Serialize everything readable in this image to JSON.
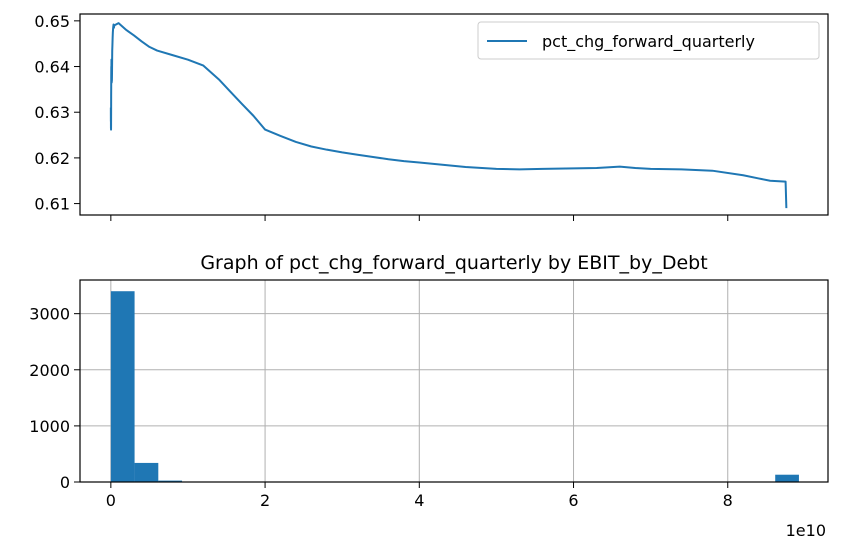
{
  "chart_data": [
    {
      "type": "line",
      "title": "",
      "legend": {
        "placement": "top-right",
        "entries": [
          "pct_chg_forward_quarterly"
        ]
      },
      "series": [
        {
          "name": "pct_chg_forward_quarterly",
          "color": "#1f77b4",
          "x": [
            0.0,
            0.0005,
            0.001,
            0.0015,
            0.002,
            0.0025,
            0.003,
            0.0035,
            0.004,
            0.0045,
            0.005,
            0.006,
            0.007,
            0.008,
            0.009,
            0.01,
            0.011,
            0.012,
            0.013,
            0.014,
            0.015,
            0.018,
            0.02,
            0.023,
            0.026,
            0.03,
            0.035,
            0.04,
            0.045,
            0.1,
            0.2,
            0.3,
            0.4,
            0.5,
            0.6,
            0.8,
            1.0,
            1.2,
            1.4,
            1.55,
            1.7,
            1.85,
            2.0,
            2.2,
            2.4,
            2.6,
            2.8,
            3.0,
            3.2,
            3.4,
            3.6,
            3.8,
            4.0,
            4.3,
            4.6,
            5.0,
            5.3,
            5.6,
            6.0,
            6.3,
            6.6,
            6.8,
            7.0,
            7.4,
            7.8,
            8.2,
            8.4,
            8.55,
            8.75,
            8.76
          ],
          "y": [
            0.631,
            0.628,
            0.6305,
            0.6265,
            0.629,
            0.6262,
            0.6275,
            0.63,
            0.6335,
            0.635,
            0.6375,
            0.64,
            0.6385,
            0.6415,
            0.637,
            0.6395,
            0.6365,
            0.6372,
            0.6368,
            0.6372,
            0.6385,
            0.6435,
            0.6445,
            0.6462,
            0.6475,
            0.6485,
            0.6492,
            0.6485,
            0.649,
            0.6495,
            0.648,
            0.6468,
            0.6455,
            0.6443,
            0.6435,
            0.6425,
            0.6415,
            0.6402,
            0.6372,
            0.6345,
            0.6318,
            0.6292,
            0.6262,
            0.6248,
            0.6235,
            0.6225,
            0.6218,
            0.6212,
            0.6207,
            0.6202,
            0.6197,
            0.6193,
            0.619,
            0.6185,
            0.618,
            0.6176,
            0.6175,
            0.6176,
            0.6177,
            0.6178,
            0.6181,
            0.6178,
            0.6176,
            0.6175,
            0.6172,
            0.6162,
            0.6155,
            0.615,
            0.6148,
            0.609
          ]
        }
      ],
      "xlim": [
        -0.4,
        9.3
      ],
      "ylim": [
        0.6075,
        0.6515
      ],
      "yticks": [
        0.61,
        0.62,
        0.63,
        0.64,
        0.65
      ],
      "ytick_labels": [
        "0.61",
        "0.62",
        "0.63",
        "0.64",
        "0.65"
      ],
      "xticks": [
        0,
        2,
        4,
        6,
        8
      ],
      "xtick_labels_shown": false,
      "grid": false
    },
    {
      "type": "bar",
      "title": "Graph of pct_chg_forward_quarterly by EBIT_by_Debt",
      "color": "#1f77b4",
      "bin_edges": [
        0.0,
        0.3077,
        0.6154,
        0.9231,
        1.2308,
        1.5385,
        1.8462,
        2.1538,
        2.4615,
        2.7692,
        3.0769,
        3.3846,
        3.6923,
        4.0,
        4.3077,
        4.6154,
        4.9231,
        5.2308,
        5.5385,
        5.8462,
        6.1538,
        6.4615,
        6.7692,
        7.0769,
        7.3846,
        7.6923,
        8.0,
        8.3077,
        8.6154,
        8.9231
      ],
      "values": [
        3400,
        340,
        25,
        8,
        0,
        0,
        0,
        0,
        0,
        0,
        0,
        0,
        0,
        0,
        0,
        0,
        0,
        0,
        0,
        0,
        0,
        0,
        0,
        0,
        0,
        0,
        0,
        0,
        130
      ],
      "xlim": [
        -0.4,
        9.3
      ],
      "ylim": [
        0,
        3600
      ],
      "xticks": [
        0,
        2,
        4,
        6,
        8
      ],
      "xtick_labels": [
        "0",
        "2",
        "4",
        "6",
        "8"
      ],
      "yticks": [
        0,
        1000,
        2000,
        3000
      ],
      "ytick_labels": [
        "0",
        "1000",
        "2000",
        "3000"
      ],
      "x_offset_label": "1e10",
      "grid": true
    }
  ]
}
